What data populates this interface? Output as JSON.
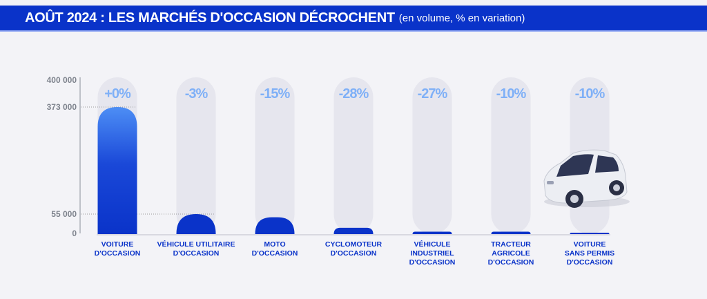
{
  "header": {
    "title": "AOÛT 2024 : LES MARCHÉS D'OCCASION DÉCROCHENT",
    "subtitle": "(en volume, % en variation)"
  },
  "chart_data": {
    "type": "bar",
    "title": "AOÛT 2024 : LES MARCHÉS D'OCCASION DÉCROCHENT",
    "subtitle": "(en volume, % en variation)",
    "categories": [
      "VOITURE\nD'OCCASION",
      "VÉHICULE UTILITAIRE\nD'OCCASION",
      "MOTO\nD'OCCASION",
      "CYCLOMOTEUR\nD'OCCASION",
      "VÉHICULE\nINDUSTRIEL\nD'OCCASION",
      "TRACTEUR\nAGRICOLE\nD'OCCASION",
      "VOITURE\nSANS PERMIS\nD'OCCASION"
    ],
    "values": [
      373000,
      55000,
      46000,
      16000,
      5000,
      5000,
      2000
    ],
    "variations": [
      "+0%",
      "-3%",
      "-15%",
      "-28%",
      "-27%",
      "-10%",
      "-10%"
    ],
    "yticks": [
      0,
      55000,
      373000,
      400000
    ],
    "ytick_labels": [
      "0",
      "55 000",
      "373 000",
      "400 000"
    ],
    "ylim": [
      0,
      400000
    ],
    "colors": {
      "bar": "#0a33c9",
      "bar_top": "#4d8ef5",
      "variation": "#7fb0f7",
      "track": "#e6e6ee",
      "axis": "#8a8f99"
    }
  }
}
